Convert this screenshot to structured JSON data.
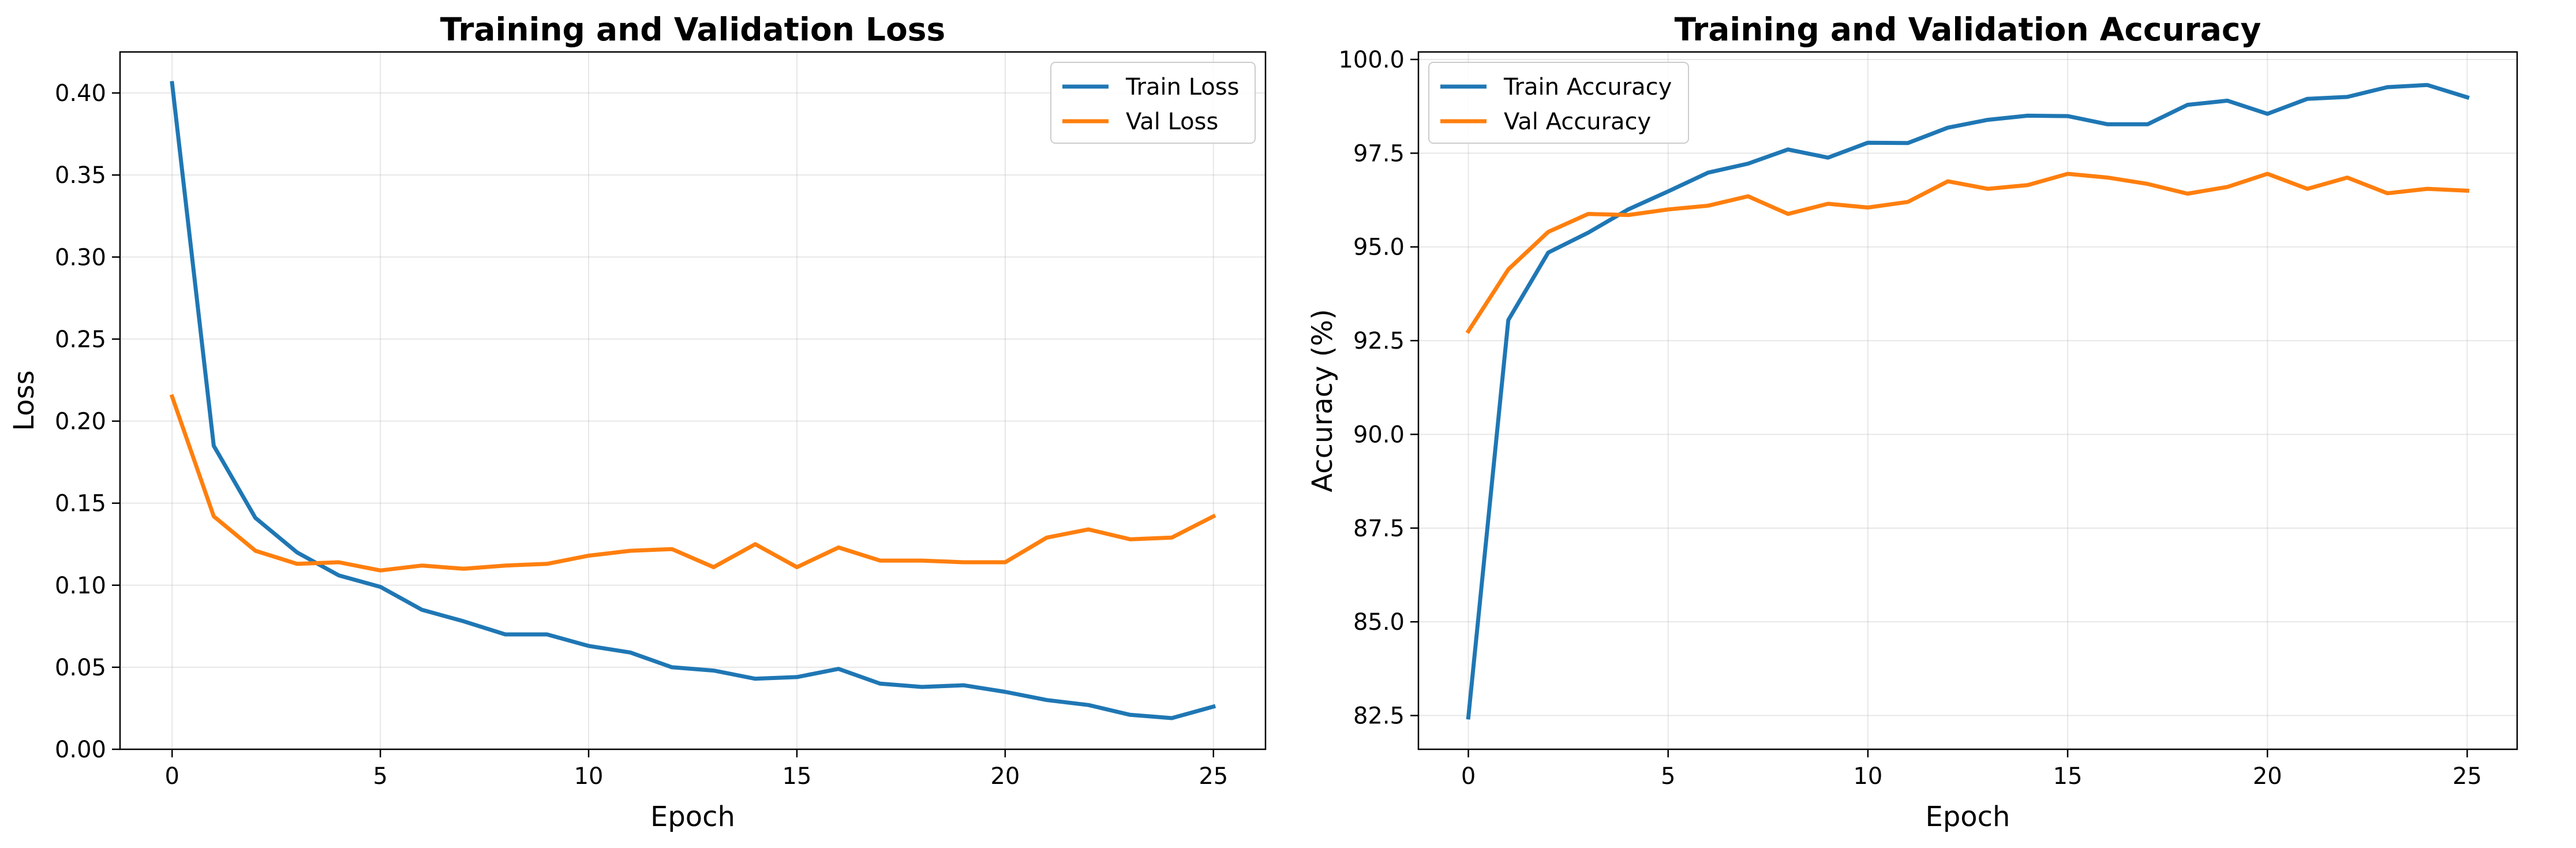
{
  "chart_data": [
    {
      "type": "line",
      "title": "Training and Validation Loss",
      "xlabel": "Epoch",
      "ylabel": "Loss",
      "xlim": [
        -1.25,
        26.25
      ],
      "ylim": [
        0.0,
        0.425
      ],
      "xticks": [
        0,
        5,
        10,
        15,
        20,
        25
      ],
      "xtick_labels": [
        "0",
        "5",
        "10",
        "15",
        "20",
        "25"
      ],
      "yticks": [
        0.0,
        0.05,
        0.1,
        0.15,
        0.2,
        0.25,
        0.3,
        0.35,
        0.4
      ],
      "ytick_labels": [
        "0.00",
        "0.05",
        "0.10",
        "0.15",
        "0.20",
        "0.25",
        "0.30",
        "0.35",
        "0.40"
      ],
      "grid": true,
      "legend_position": "top-right",
      "x": [
        0,
        1,
        2,
        3,
        4,
        5,
        6,
        7,
        8,
        9,
        10,
        11,
        12,
        13,
        14,
        15,
        16,
        17,
        18,
        19,
        20,
        21,
        22,
        23,
        24,
        25
      ],
      "series": [
        {
          "name": "Train Loss",
          "color": "#1f77b4",
          "values": [
            0.406,
            0.185,
            0.141,
            0.12,
            0.106,
            0.099,
            0.085,
            0.078,
            0.07,
            0.07,
            0.063,
            0.059,
            0.05,
            0.048,
            0.043,
            0.044,
            0.049,
            0.04,
            0.038,
            0.039,
            0.035,
            0.03,
            0.027,
            0.021,
            0.019,
            0.026
          ]
        },
        {
          "name": "Val Loss",
          "color": "#ff7f0e",
          "values": [
            0.215,
            0.142,
            0.121,
            0.113,
            0.114,
            0.109,
            0.112,
            0.11,
            0.112,
            0.113,
            0.118,
            0.121,
            0.122,
            0.111,
            0.125,
            0.111,
            0.123,
            0.115,
            0.115,
            0.114,
            0.114,
            0.129,
            0.134,
            0.128,
            0.129,
            0.142
          ]
        }
      ]
    },
    {
      "type": "line",
      "title": "Training and Validation Accuracy",
      "xlabel": "Epoch",
      "ylabel": "Accuracy (%)",
      "xlim": [
        -1.25,
        26.25
      ],
      "ylim": [
        81.6,
        100.2
      ],
      "xticks": [
        0,
        5,
        10,
        15,
        20,
        25
      ],
      "xtick_labels": [
        "0",
        "5",
        "10",
        "15",
        "20",
        "25"
      ],
      "yticks": [
        82.5,
        85.0,
        87.5,
        90.0,
        92.5,
        95.0,
        97.5,
        100.0
      ],
      "ytick_labels": [
        "82.5",
        "85.0",
        "87.5",
        "90.0",
        "92.5",
        "95.0",
        "97.5",
        "100.0"
      ],
      "grid": true,
      "legend_position": "top-left",
      "x": [
        0,
        1,
        2,
        3,
        4,
        5,
        6,
        7,
        8,
        9,
        10,
        11,
        12,
        13,
        14,
        15,
        16,
        17,
        18,
        19,
        20,
        21,
        22,
        23,
        24,
        25
      ],
      "series": [
        {
          "name": "Train Accuracy",
          "color": "#1f77b4",
          "values": [
            82.45,
            93.05,
            94.85,
            95.38,
            96.0,
            96.48,
            96.98,
            97.22,
            97.6,
            97.38,
            97.78,
            97.77,
            98.18,
            98.39,
            98.5,
            98.49,
            98.27,
            98.27,
            98.79,
            98.9,
            98.55,
            98.95,
            99.0,
            99.26,
            99.32,
            98.99
          ]
        },
        {
          "name": "Val Accuracy",
          "color": "#ff7f0e",
          "values": [
            92.75,
            94.4,
            95.4,
            95.88,
            95.85,
            96.0,
            96.1,
            96.35,
            95.88,
            96.15,
            96.05,
            96.2,
            96.75,
            96.55,
            96.65,
            96.95,
            96.85,
            96.68,
            96.42,
            96.6,
            96.95,
            96.55,
            96.85,
            96.43,
            96.55,
            96.5
          ]
        }
      ]
    }
  ]
}
